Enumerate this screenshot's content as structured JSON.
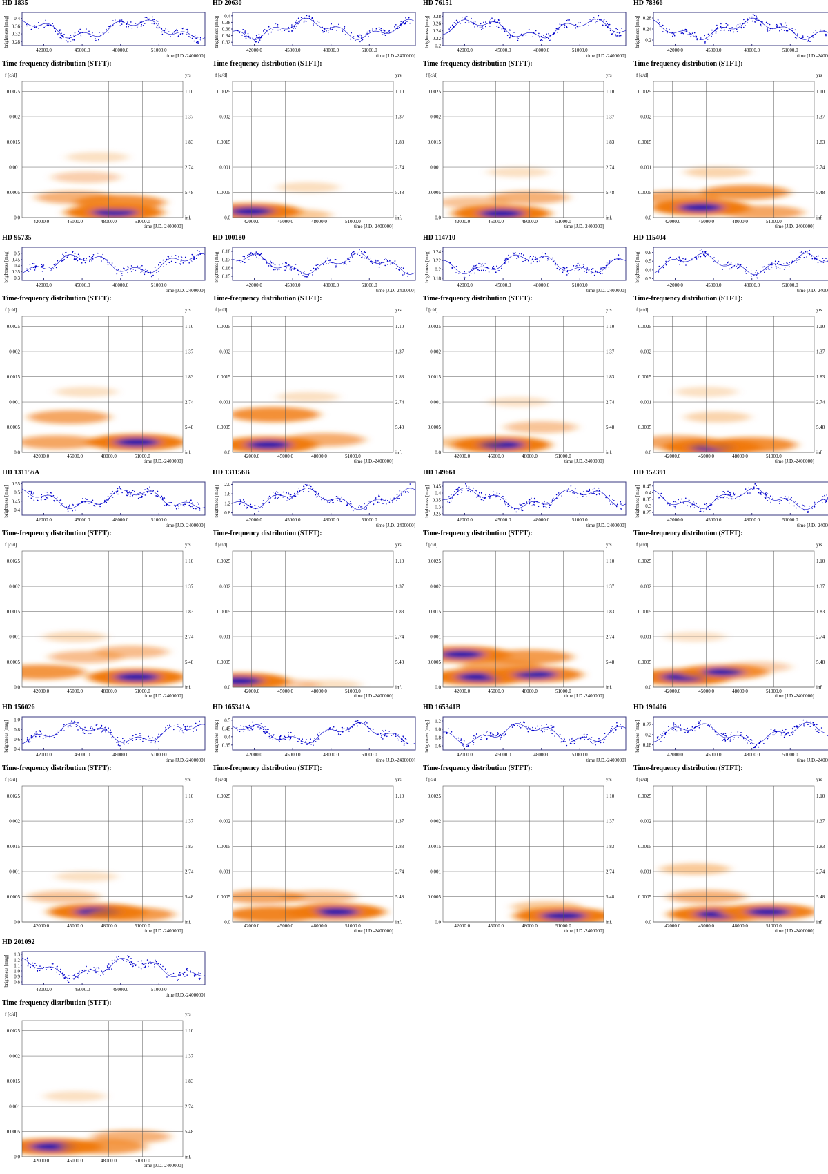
{
  "stft_heading": "Time-frequency distribution (STFT):",
  "lc_ylabel": "brightness [mag]",
  "time_label": "time [J.D.-2400000]",
  "freq_label": "f [c/d]",
  "period_label": "yrs",
  "time_ticks": [
    "42000.0",
    "45000.0",
    "48000.0",
    "51000.0"
  ],
  "freq_ticks": [
    "0.0",
    "0.0005",
    "0.001",
    "0.0015",
    "0.002",
    "0.0025"
  ],
  "period_ticks": [
    "inf.",
    "5.48",
    "2.74",
    "1.83",
    "1.37",
    "1.10"
  ],
  "colors": {
    "axis": "#3a3a80",
    "points": "#0000cc",
    "hot": "#f07a10",
    "peak": "#1a1ab4"
  },
  "chart_data": [
    {
      "type": "heatmap",
      "title": "HD 1835",
      "lc_yticks": [
        "0.28",
        "0.32",
        "0.36",
        "0.4"
      ],
      "lc_ylim": [
        0.26,
        0.43
      ],
      "stft_blobs": [
        {
          "t": 48500,
          "f": 0.0001,
          "amp": 1.0,
          "peak": true
        },
        {
          "t": 49000,
          "f": 0.0003,
          "amp": 0.8
        },
        {
          "t": 45000,
          "f": 0.0004,
          "amp": 0.5
        },
        {
          "t": 46000,
          "f": 0.0008,
          "amp": 0.25
        },
        {
          "t": 47000,
          "f": 0.0012,
          "amp": 0.1
        }
      ]
    },
    {
      "type": "heatmap",
      "title": "HD 20630",
      "lc_yticks": [
        "0.32",
        "0.34",
        "0.36",
        "0.38",
        "0.4"
      ],
      "lc_ylim": [
        0.31,
        0.41
      ],
      "stft_blobs": [
        {
          "t": 42000,
          "f": 0.00012,
          "amp": 1.0,
          "peak": true
        },
        {
          "t": 46000,
          "f": 5e-05,
          "amp": 0.3
        },
        {
          "t": 47000,
          "f": 0.0006,
          "amp": 0.12
        }
      ]
    },
    {
      "type": "heatmap",
      "title": "HD 76151",
      "lc_yticks": [
        "0.2",
        "0.22",
        "0.24",
        "0.26",
        "0.28"
      ],
      "lc_ylim": [
        0.2,
        0.29
      ],
      "stft_blobs": [
        {
          "t": 45500,
          "f": 8e-05,
          "amp": 1.0,
          "peak": true
        },
        {
          "t": 48000,
          "f": 0.0004,
          "amp": 0.5
        },
        {
          "t": 43000,
          "f": 0.0003,
          "amp": 0.35
        },
        {
          "t": 47000,
          "f": 0.0009,
          "amp": 0.1
        }
      ]
    },
    {
      "type": "heatmap",
      "title": "HD 78366",
      "lc_yticks": [
        "0.2",
        "0.24",
        "0.28"
      ],
      "lc_ylim": [
        0.18,
        0.3
      ],
      "stft_blobs": [
        {
          "t": 44500,
          "f": 0.0002,
          "amp": 1.0,
          "peak": true
        },
        {
          "t": 48500,
          "f": 0.0005,
          "amp": 0.75
        },
        {
          "t": 42500,
          "f": 0.0004,
          "amp": 0.6
        },
        {
          "t": 50000,
          "f": 0.0001,
          "amp": 0.6
        },
        {
          "t": 46000,
          "f": 0.0009,
          "amp": 0.2
        }
      ]
    },
    {
      "type": "heatmap",
      "title": "HD 95735",
      "lc_yticks": [
        "0.3",
        "0.35",
        "0.4",
        "0.45",
        "0.5"
      ],
      "lc_ylim": [
        0.28,
        0.55
      ],
      "stft_blobs": [
        {
          "t": 50500,
          "f": 0.0002,
          "amp": 1.0,
          "peak": true
        },
        {
          "t": 44500,
          "f": 0.0007,
          "amp": 0.6
        },
        {
          "t": 43500,
          "f": 0.0002,
          "amp": 0.6
        },
        {
          "t": 46000,
          "f": 0.0012,
          "amp": 0.1
        }
      ]
    },
    {
      "type": "heatmap",
      "title": "HD 100180",
      "lc_yticks": [
        "0.15",
        "0.16",
        "0.17",
        "0.18"
      ],
      "lc_ylim": [
        0.145,
        0.185
      ],
      "stft_blobs": [
        {
          "t": 43500,
          "f": 0.00015,
          "amp": 1.0,
          "peak": true
        },
        {
          "t": 44000,
          "f": 0.00075,
          "amp": 0.8
        },
        {
          "t": 48500,
          "f": 0.00025,
          "amp": 0.55
        },
        {
          "t": 47000,
          "f": 0.0011,
          "amp": 0.1
        }
      ]
    },
    {
      "type": "heatmap",
      "title": "HD 114710",
      "lc_yticks": [
        "0.18",
        "0.2",
        "0.22",
        "0.24"
      ],
      "lc_ylim": [
        0.175,
        0.25
      ],
      "stft_blobs": [
        {
          "t": 45500,
          "f": 0.00015,
          "amp": 1.0,
          "peak": true
        },
        {
          "t": 49000,
          "f": 0.0005,
          "amp": 0.35
        },
        {
          "t": 42500,
          "f": 0.0002,
          "amp": 0.3
        },
        {
          "t": 47000,
          "f": 0.001,
          "amp": 0.08
        }
      ]
    },
    {
      "type": "heatmap",
      "title": "HD 115404",
      "lc_yticks": [
        "0.3",
        "0.4",
        "0.5",
        "0.6"
      ],
      "lc_ylim": [
        0.28,
        0.66
      ],
      "stft_blobs": [
        {
          "t": 45500,
          "f": 0.0001,
          "amp": 1.0,
          "peak": true
        },
        {
          "t": 49000,
          "f": 0.00015,
          "amp": 0.8
        },
        {
          "t": 42500,
          "f": 0.0002,
          "amp": 0.6
        },
        {
          "t": 46000,
          "f": 0.0007,
          "amp": 0.2
        },
        {
          "t": 45000,
          "f": 0.0012,
          "amp": 0.1
        }
      ]
    },
    {
      "type": "heatmap",
      "title": "HD 131156A",
      "lc_yticks": [
        "0.4",
        "0.45",
        "0.5",
        "0.55"
      ],
      "lc_ylim": [
        0.37,
        0.56
      ],
      "stft_blobs": [
        {
          "t": 50500,
          "f": 0.0002,
          "amp": 1.0,
          "peak": true
        },
        {
          "t": 42000,
          "f": 0.0003,
          "amp": 0.75
        },
        {
          "t": 46000,
          "f": 0.0006,
          "amp": 0.4
        },
        {
          "t": 50000,
          "f": 0.0007,
          "amp": 0.4
        },
        {
          "t": 45000,
          "f": 0.001,
          "amp": 0.15
        }
      ]
    },
    {
      "type": "heatmap",
      "title": "HD 131156B",
      "lc_yticks": [
        "0.8",
        "1.2",
        "1.6",
        "2.0"
      ],
      "lc_ylim": [
        0.7,
        2.1
      ],
      "stft_blobs": [
        {
          "t": 41000,
          "f": 0.00012,
          "amp": 1.0,
          "peak": true
        },
        {
          "t": 45000,
          "f": 5e-05,
          "amp": 0.25
        },
        {
          "t": 49000,
          "f": 5e-05,
          "amp": 0.1
        }
      ]
    },
    {
      "type": "heatmap",
      "title": "HD 149661",
      "lc_yticks": [
        "0.25",
        "0.3",
        "0.35",
        "0.4",
        "0.45"
      ],
      "lc_ylim": [
        0.24,
        0.48
      ],
      "stft_blobs": [
        {
          "t": 42000,
          "f": 0.00065,
          "amp": 0.95,
          "peak": true
        },
        {
          "t": 43500,
          "f": 0.0002,
          "amp": 1.0,
          "peak": true
        },
        {
          "t": 48500,
          "f": 0.00025,
          "amp": 0.9,
          "peak": true
        },
        {
          "t": 48000,
          "f": 0.0006,
          "amp": 0.7
        },
        {
          "t": 45500,
          "f": 0.0004,
          "amp": 0.6
        }
      ]
    },
    {
      "type": "heatmap",
      "title": "HD 152391",
      "lc_yticks": [
        "0.25",
        "0.3",
        "0.35",
        "0.4",
        "0.45"
      ],
      "lc_ylim": [
        0.23,
        0.48
      ],
      "stft_blobs": [
        {
          "t": 43000,
          "f": 0.0002,
          "amp": 1.0,
          "peak": true
        },
        {
          "t": 46500,
          "f": 0.0003,
          "amp": 0.8,
          "peak": true
        },
        {
          "t": 49500,
          "f": 0.0004,
          "amp": 0.25
        },
        {
          "t": 44000,
          "f": 0.001,
          "amp": 0.08
        }
      ]
    },
    {
      "type": "heatmap",
      "title": "HD 156026",
      "lc_yticks": [
        "0.4",
        "0.6",
        "0.8",
        "1.0"
      ],
      "lc_ylim": [
        0.38,
        1.06
      ],
      "stft_blobs": [
        {
          "t": 47000,
          "f": 0.0002,
          "amp": 1.0,
          "peak": true
        },
        {
          "t": 50000,
          "f": 0.00015,
          "amp": 0.7
        },
        {
          "t": 44000,
          "f": 0.0005,
          "amp": 0.35
        },
        {
          "t": 46000,
          "f": 0.0009,
          "amp": 0.1
        }
      ]
    },
    {
      "type": "heatmap",
      "title": "HD 165341A",
      "lc_yticks": [
        "0.35",
        "0.4",
        "0.45",
        "0.5"
      ],
      "lc_ylim": [
        0.32,
        0.52
      ],
      "stft_blobs": [
        {
          "t": 49500,
          "f": 0.0002,
          "amp": 1.0,
          "peak": true
        },
        {
          "t": 44000,
          "f": 0.00015,
          "amp": 0.9
        },
        {
          "t": 43000,
          "f": 0.0005,
          "amp": 0.6
        },
        {
          "t": 48000,
          "f": 0.0005,
          "amp": 0.4
        }
      ]
    },
    {
      "type": "heatmap",
      "title": "HD 165341B",
      "lc_yticks": [
        "0.6",
        "0.8",
        "1.0",
        "1.2"
      ],
      "lc_ylim": [
        0.5,
        1.3
      ],
      "stft_blobs": [
        {
          "t": 51000,
          "f": 0.00012,
          "amp": 1.0,
          "peak": true
        },
        {
          "t": 49500,
          "f": 0.0003,
          "amp": 0.3
        }
      ]
    },
    {
      "type": "heatmap",
      "title": "HD 190406",
      "lc_yticks": [
        "0.18",
        "0.2",
        "0.22"
      ],
      "lc_ylim": [
        0.17,
        0.235
      ],
      "stft_blobs": [
        {
          "t": 46000,
          "f": 0.00015,
          "amp": 1.0,
          "peak": true
        },
        {
          "t": 50500,
          "f": 0.0002,
          "amp": 0.95,
          "peak": true
        },
        {
          "t": 45000,
          "f": 0.0005,
          "amp": 0.5
        },
        {
          "t": 44000,
          "f": 0.00105,
          "amp": 0.3
        }
      ]
    },
    {
      "type": "heatmap",
      "title": "HD 201092",
      "lc_yticks": [
        "0.8",
        "0.9",
        "1.0",
        "1.1",
        "1.2",
        "1.3"
      ],
      "lc_ylim": [
        0.75,
        1.35
      ],
      "stft_blobs": [
        {
          "t": 43000,
          "f": 0.0002,
          "amp": 1.0,
          "peak": true
        },
        {
          "t": 47500,
          "f": 0.0002,
          "amp": 0.7
        },
        {
          "t": 50000,
          "f": 0.0004,
          "amp": 0.5
        },
        {
          "t": 45000,
          "f": 0.0012,
          "amp": 0.1
        }
      ]
    }
  ]
}
